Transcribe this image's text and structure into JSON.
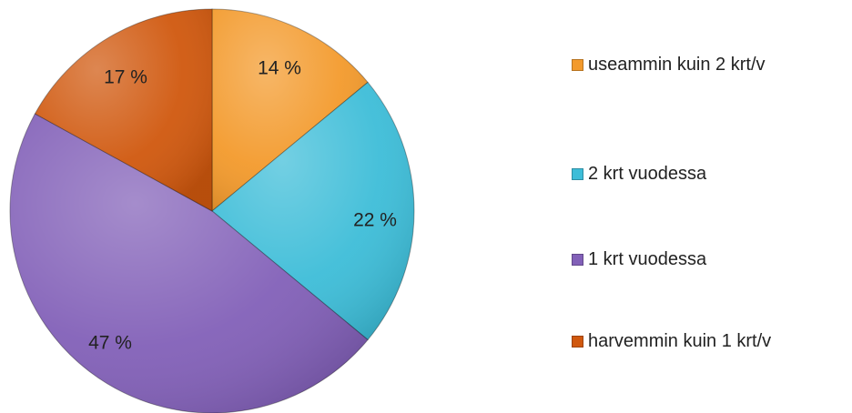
{
  "chart_data": {
    "type": "pie",
    "title": "",
    "start_angle_deg": 0,
    "direction": "clockwise",
    "legend_position": "right",
    "series": [
      {
        "values": [
          14,
          22,
          47,
          17
        ],
        "labels": [
          "14 %",
          "22 %",
          "47 %",
          "17 %"
        ]
      }
    ],
    "categories": [
      "useammin kuin 2 krt/v",
      "2 krt vuodessa",
      "1 krt vuodessa",
      "harvemmin kuin 1 krt/v"
    ],
    "colors": [
      "#F39A2C",
      "#3DBDD8",
      "#8260B8",
      "#D0580E"
    ]
  },
  "legend": {
    "items": [
      {
        "label": "useammin kuin 2 krt/v",
        "color": "#F39A2C"
      },
      {
        "label": "2 krt vuodessa",
        "color": "#3DBDD8"
      },
      {
        "label": "1 krt vuodessa",
        "color": "#8260B8"
      },
      {
        "label": "harvemmin kuin 1 krt/v",
        "color": "#D0580E"
      }
    ]
  }
}
